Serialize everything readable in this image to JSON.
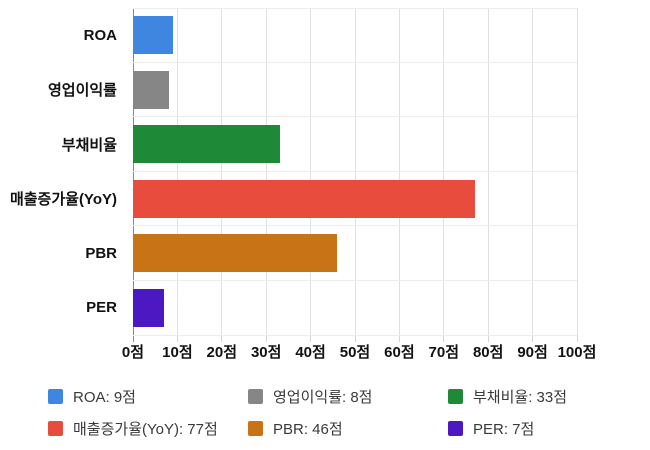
{
  "chart_data": {
    "type": "bar",
    "orientation": "horizontal",
    "title": "",
    "categories": [
      "ROA",
      "영업이익률",
      "부채비율",
      "매출증가율(YoY)",
      "PBR",
      "PER"
    ],
    "values": [
      9,
      8,
      33,
      77,
      46,
      7
    ],
    "unit": "점",
    "colors": [
      "#3e86e0",
      "#868686",
      "#1e8a38",
      "#e74c3c",
      "#c87416",
      "#4b18c1"
    ],
    "xlim": [
      0,
      100
    ],
    "x_tick_labels": [
      "0점",
      "10점",
      "20점",
      "30점",
      "40점",
      "50점",
      "60점",
      "70점",
      "80점",
      "90점",
      "100점"
    ],
    "grid": true,
    "legend_position": "bottom",
    "legend": {
      "columns": 3,
      "items": [
        {
          "label": "ROA: 9점",
          "color": "#3e86e0"
        },
        {
          "label": "영업이익률: 8점",
          "color": "#868686"
        },
        {
          "label": "부채비율: 33점",
          "color": "#1e8a38"
        },
        {
          "label": "매출증가율(YoY): 77점",
          "color": "#e74c3c"
        },
        {
          "label": "PBR: 46점",
          "color": "#c87416"
        },
        {
          "label": "PER: 7점",
          "color": "#4b18c1"
        }
      ]
    },
    "style_colors": {
      "background": "#ffffff",
      "gridline": "#e0e0e0",
      "band_line": "#ececec",
      "axis_line": "#8a8a8a",
      "axis_label_text": "#111111",
      "legend_text": "#3a3a3a"
    }
  }
}
